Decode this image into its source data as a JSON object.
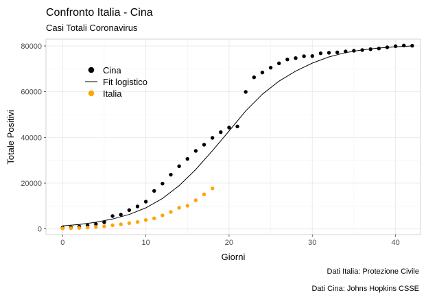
{
  "chart_data": {
    "type": "scatter",
    "title": "Confronto Italia - Cina",
    "subtitle": "Casi Totali Coronavirus",
    "xlabel": "Giorni",
    "ylabel": "Totale Positivi",
    "xlim": [
      -2,
      43
    ],
    "ylim": [
      -2500,
      83000
    ],
    "xticks": [
      0,
      10,
      20,
      30,
      40
    ],
    "yticks": [
      0,
      20000,
      40000,
      60000,
      80000
    ],
    "grid": true,
    "legend_position": "top-left",
    "legend": [
      {
        "label": "Cina",
        "kind": "point",
        "color": "#000000"
      },
      {
        "label": "Fit logistico",
        "kind": "line",
        "color": "#000000"
      },
      {
        "label": "Italia",
        "kind": "point",
        "color": "#FFA500"
      }
    ],
    "series": [
      {
        "name": "Cina",
        "kind": "point",
        "color": "#000000",
        "x": [
          0,
          1,
          2,
          3,
          4,
          5,
          6,
          7,
          8,
          9,
          10,
          11,
          12,
          13,
          14,
          15,
          16,
          17,
          18,
          19,
          20,
          21,
          22,
          23,
          24,
          25,
          26,
          27,
          28,
          29,
          30,
          31,
          32,
          33,
          34,
          35,
          36,
          37,
          38,
          39,
          40,
          41,
          42
        ],
        "y": [
          550,
          650,
          1000,
          1500,
          2100,
          2900,
          5600,
          6200,
          8200,
          9800,
          11900,
          16600,
          19800,
          23700,
          27400,
          30600,
          34100,
          36800,
          39800,
          42300,
          44300,
          44800,
          59900,
          66300,
          68400,
          70500,
          72400,
          74100,
          74700,
          75500,
          75600,
          76800,
          77000,
          77200,
          77600,
          77900,
          78200,
          78600,
          78900,
          79400,
          79900,
          80200,
          80100
        ]
      },
      {
        "name": "Fit logistico",
        "kind": "line",
        "color": "#000000",
        "x": [
          0,
          2,
          4,
          6,
          8,
          10,
          12,
          14,
          16,
          18,
          20,
          22,
          24,
          26,
          28,
          30,
          32,
          34,
          36,
          38,
          40,
          42
        ],
        "y": [
          1300,
          1900,
          2900,
          4300,
          6300,
          9200,
          13300,
          18900,
          26000,
          34200,
          42800,
          51600,
          58900,
          64600,
          69000,
          72500,
          75200,
          77100,
          78300,
          79100,
          79600,
          80000
        ]
      },
      {
        "name": "Italia",
        "kind": "point",
        "color": "#FFA500",
        "x": [
          0,
          1,
          2,
          3,
          4,
          5,
          6,
          7,
          8,
          9,
          10,
          11,
          12,
          13,
          14,
          15,
          16,
          17,
          18
        ],
        "y": [
          200,
          300,
          400,
          600,
          800,
          1100,
          1600,
          2000,
          2500,
          3000,
          3900,
          4600,
          5900,
          7400,
          9200,
          10100,
          12500,
          15100,
          17700
        ]
      }
    ],
    "captions": [
      "Dati Italia: Protezione Civile",
      "Dati Cina: Johns Hopkins CSSE"
    ]
  }
}
